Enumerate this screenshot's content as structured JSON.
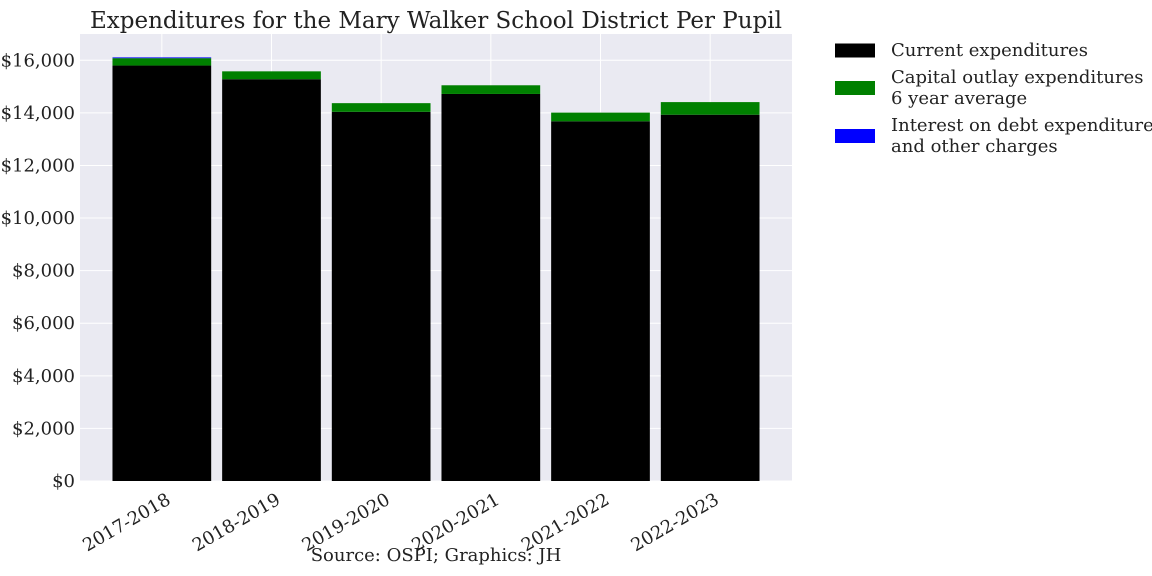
{
  "chart_data": {
    "type": "bar",
    "stacked": true,
    "title": "Expenditures for the Mary Walker School District Per Pupil",
    "xlabel": "",
    "ylabel": "",
    "source": "Source: OSPI; Graphics: JH",
    "categories": [
      "2017-2018",
      "2018-2019",
      "2019-2020",
      "2020-2021",
      "2021-2022",
      "2022-2023"
    ],
    "ylim": [
      0,
      17000
    ],
    "yticks": [
      0,
      2000,
      4000,
      6000,
      8000,
      10000,
      12000,
      14000,
      16000
    ],
    "ytick_labels": [
      "$0",
      "$2,000",
      "$4,000",
      "$6,000",
      "$8,000",
      "$10,000",
      "$12,000",
      "$14,000",
      "$16,000"
    ],
    "grid": true,
    "legend_position": "outside-right",
    "series": [
      {
        "name": "Current expenditures",
        "color": "#000000",
        "values": [
          15800,
          15280,
          14040,
          14720,
          13680,
          13930
        ]
      },
      {
        "name": "Capital outlay expenditures\n6 year average",
        "color": "#008000",
        "values": [
          280,
          300,
          330,
          330,
          330,
          480
        ]
      },
      {
        "name": "Interest on debt expenditures\nand other charges",
        "color": "#0000ff",
        "values": [
          30,
          0,
          0,
          0,
          0,
          0
        ]
      }
    ]
  }
}
